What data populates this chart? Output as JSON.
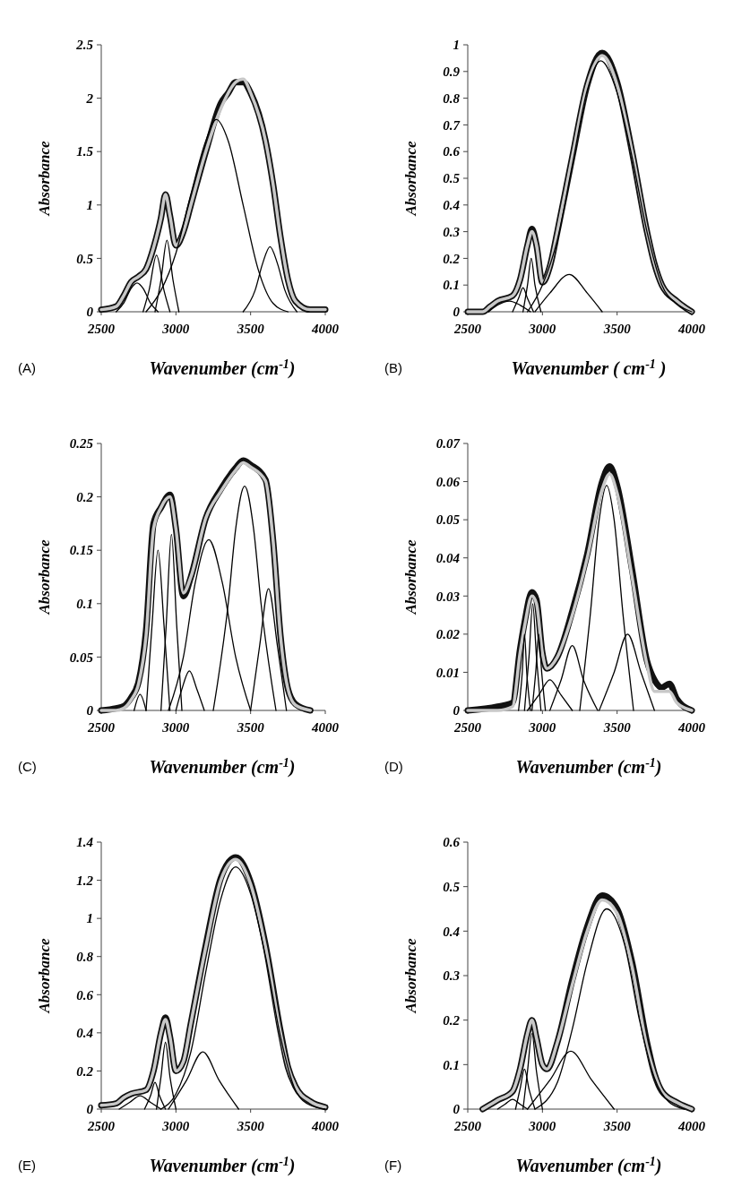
{
  "chart_data": [
    {
      "type": "line",
      "title": "(A)",
      "xlabel": "Wavenumber (cm$^{-1}$)",
      "ylabel": "Absorbance",
      "xlim": [
        2500,
        4000
      ],
      "xticks": [
        2500,
        3000,
        3500,
        4000
      ],
      "ylim": [
        0,
        2.5
      ],
      "yticks": [
        0,
        0.5,
        1,
        1.5,
        2,
        2.5
      ],
      "series": [
        {
          "color": "#111111",
          "x": [
            2500,
            2600,
            2650,
            2700,
            2750,
            2800,
            2850,
            2900,
            2930,
            2960,
            3000,
            3050,
            3100,
            3200,
            3300,
            3350,
            3400,
            3450,
            3500,
            3600,
            3650,
            3700,
            3750,
            3800,
            3900,
            4000
          ],
          "values": [
            0.02,
            0.05,
            0.15,
            0.28,
            0.33,
            0.4,
            0.6,
            0.88,
            1.1,
            0.9,
            0.62,
            0.75,
            1.0,
            1.5,
            1.95,
            2.05,
            2.15,
            2.15,
            2.05,
            1.6,
            1.2,
            0.7,
            0.3,
            0.1,
            0.02,
            0.02
          ]
        },
        {
          "color": "#c8c8c8",
          "x": [
            2500,
            2600,
            2650,
            2700,
            2750,
            2800,
            2850,
            2900,
            2930,
            2960,
            3000,
            3050,
            3100,
            3200,
            3300,
            3400,
            3450,
            3500,
            3600,
            3650,
            3700,
            3750,
            3800,
            3900,
            4000
          ],
          "values": [
            0.02,
            0.05,
            0.15,
            0.28,
            0.33,
            0.4,
            0.6,
            0.88,
            1.1,
            0.9,
            0.62,
            0.75,
            1.0,
            1.5,
            1.9,
            2.15,
            2.18,
            2.05,
            1.6,
            1.2,
            0.7,
            0.3,
            0.1,
            0.02,
            0.02
          ]
        },
        {
          "color": "#000000",
          "x": [
            2600,
            2650,
            2700,
            2740,
            2780,
            2830,
            2880
          ],
          "values": [
            0,
            0.08,
            0.22,
            0.27,
            0.22,
            0.08,
            0
          ]
        },
        {
          "color": "#000000",
          "x": [
            2780,
            2820,
            2870,
            2920,
            2960
          ],
          "values": [
            0,
            0.2,
            0.53,
            0.2,
            0
          ]
        },
        {
          "color": "#000000",
          "x": [
            2860,
            2900,
            2940,
            2980,
            3020
          ],
          "values": [
            0,
            0.3,
            0.67,
            0.3,
            0
          ]
        },
        {
          "color": "#000000",
          "x": [
            2800,
            2900,
            3000,
            3100,
            3200,
            3270,
            3350,
            3450,
            3550,
            3650,
            3750
          ],
          "values": [
            0,
            0.2,
            0.55,
            1.1,
            1.6,
            1.8,
            1.6,
            1.0,
            0.4,
            0.08,
            0
          ]
        },
        {
          "color": "#000000",
          "x": [
            3450,
            3530,
            3580,
            3630,
            3680,
            3730,
            3810
          ],
          "values": [
            0,
            0.2,
            0.45,
            0.61,
            0.45,
            0.2,
            0
          ]
        }
      ]
    },
    {
      "type": "line",
      "title": "(B)",
      "xlabel": "Wavenumber ( cm$^{-1}$ )",
      "ylabel": "Absorbance",
      "xlim": [
        2500,
        4000
      ],
      "xticks": [
        2500,
        3000,
        3500,
        4000
      ],
      "ylim": [
        0,
        1
      ],
      "yticks": [
        0,
        0.1,
        0.2,
        0.3,
        0.4,
        0.5,
        0.6,
        0.7,
        0.8,
        0.9,
        1
      ],
      "series": [
        {
          "color": "#111111",
          "x": [
            2500,
            2600,
            2650,
            2700,
            2800,
            2850,
            2900,
            2930,
            2960,
            3000,
            3050,
            3100,
            3200,
            3300,
            3400,
            3500,
            3600,
            3700,
            3750,
            3800,
            3900,
            4000
          ],
          "values": [
            0,
            0,
            0.02,
            0.04,
            0.06,
            0.12,
            0.25,
            0.31,
            0.25,
            0.11,
            0.17,
            0.3,
            0.58,
            0.85,
            0.97,
            0.86,
            0.6,
            0.3,
            0.18,
            0.1,
            0.04,
            0
          ]
        },
        {
          "color": "#c8c8c8",
          "x": [
            2500,
            2600,
            2650,
            2700,
            2800,
            2850,
            2900,
            2930,
            2960,
            3000,
            3050,
            3100,
            3200,
            3300,
            3400,
            3500,
            3600,
            3700,
            3750,
            3800,
            3900,
            4000
          ],
          "values": [
            0,
            0,
            0.02,
            0.04,
            0.06,
            0.12,
            0.25,
            0.3,
            0.25,
            0.11,
            0.17,
            0.3,
            0.58,
            0.85,
            0.96,
            0.85,
            0.6,
            0.3,
            0.18,
            0.1,
            0.04,
            0
          ]
        },
        {
          "color": "#000000",
          "x": [
            2640,
            2700,
            2780,
            2850,
            2920
          ],
          "values": [
            0,
            0.025,
            0.04,
            0.025,
            0
          ]
        },
        {
          "color": "#000000",
          "x": [
            2800,
            2840,
            2870,
            2900,
            2940
          ],
          "values": [
            0,
            0.05,
            0.09,
            0.05,
            0
          ]
        },
        {
          "color": "#000000",
          "x": [
            2870,
            2900,
            2925,
            2950,
            2990
          ],
          "values": [
            0,
            0.1,
            0.2,
            0.1,
            0
          ]
        },
        {
          "color": "#000000",
          "x": [
            2950,
            3050,
            3180,
            3300,
            3400
          ],
          "values": [
            0,
            0.07,
            0.14,
            0.07,
            0
          ]
        },
        {
          "color": "#000000",
          "x": [
            2900,
            3000,
            3100,
            3200,
            3300,
            3390,
            3500,
            3600,
            3700,
            3800,
            3900,
            4000
          ],
          "values": [
            0,
            0.1,
            0.27,
            0.55,
            0.83,
            0.94,
            0.82,
            0.58,
            0.3,
            0.1,
            0.03,
            0
          ]
        }
      ]
    },
    {
      "type": "line",
      "title": "(C)",
      "xlabel": "Wavenumber (cm$^{-1}$)",
      "ylabel": "Absorbance",
      "xlim": [
        2500,
        4000
      ],
      "xticks": [
        2500,
        3000,
        3500,
        4000
      ],
      "ylim": [
        0,
        0.25
      ],
      "yticks": [
        0,
        0.05,
        0.1,
        0.15,
        0.2,
        0.25
      ],
      "series": [
        {
          "color": "#111111",
          "x": [
            2500,
            2600,
            2650,
            2700,
            2750,
            2800,
            2850,
            2900,
            2960,
            3000,
            3050,
            3100,
            3200,
            3300,
            3400,
            3450,
            3500,
            3600,
            3650,
            3700,
            3750,
            3800,
            3900
          ],
          "values": [
            0,
            0.002,
            0.004,
            0.012,
            0.027,
            0.075,
            0.175,
            0.19,
            0.202,
            0.17,
            0.107,
            0.125,
            0.18,
            0.207,
            0.227,
            0.234,
            0.23,
            0.216,
            0.16,
            0.07,
            0.02,
            0.006,
            0
          ]
        },
        {
          "color": "#c8c8c8",
          "x": [
            2500,
            2600,
            2650,
            2700,
            2750,
            2800,
            2850,
            2900,
            2960,
            3000,
            3050,
            3100,
            3200,
            3300,
            3400,
            3450,
            3500,
            3600,
            3650,
            3700,
            3750,
            3800,
            3900
          ],
          "values": [
            0,
            0,
            0.002,
            0.01,
            0.025,
            0.07,
            0.17,
            0.19,
            0.2,
            0.17,
            0.11,
            0.125,
            0.18,
            0.205,
            0.225,
            0.232,
            0.228,
            0.215,
            0.16,
            0.07,
            0.02,
            0.005,
            0
          ]
        },
        {
          "color": "#000000",
          "x": [
            2720,
            2760,
            2800
          ],
          "values": [
            0,
            0.015,
            0
          ]
        },
        {
          "color": "#000000",
          "x": [
            2800,
            2840,
            2880,
            2920,
            2960
          ],
          "values": [
            0,
            0.08,
            0.15,
            0.08,
            0
          ]
        },
        {
          "color": "#000000",
          "x": [
            2900,
            2935,
            2970,
            3005,
            3040
          ],
          "values": [
            0,
            0.08,
            0.165,
            0.08,
            0
          ]
        },
        {
          "color": "#000000",
          "x": [
            3000,
            3040,
            3090,
            3140,
            3190
          ],
          "values": [
            0,
            0.02,
            0.037,
            0.02,
            0
          ]
        },
        {
          "color": "#000000",
          "x": [
            2950,
            3050,
            3130,
            3220,
            3310,
            3400,
            3500
          ],
          "values": [
            0,
            0.05,
            0.12,
            0.16,
            0.12,
            0.05,
            0
          ]
        },
        {
          "color": "#000000",
          "x": [
            3250,
            3350,
            3400,
            3460,
            3520,
            3570,
            3670
          ],
          "values": [
            0,
            0.1,
            0.17,
            0.21,
            0.17,
            0.1,
            0
          ]
        },
        {
          "color": "#000000",
          "x": [
            3500,
            3560,
            3620,
            3680,
            3740
          ],
          "values": [
            0,
            0.06,
            0.114,
            0.06,
            0
          ]
        }
      ]
    },
    {
      "type": "line",
      "title": "(D)",
      "xlabel": "Wavenumber (cm$^{-1}$)",
      "ylabel": "Absorbance",
      "xlim": [
        2500,
        4000
      ],
      "xticks": [
        2500,
        3000,
        3500,
        4000
      ],
      "ylim": [
        0,
        0.07
      ],
      "yticks": [
        0,
        0.01,
        0.02,
        0.03,
        0.04,
        0.05,
        0.06,
        0.07
      ],
      "series": [
        {
          "color": "#111111",
          "x": [
            2500,
            2700,
            2800,
            2850,
            2880,
            2930,
            2960,
            3000,
            3030,
            3100,
            3200,
            3300,
            3400,
            3450,
            3500,
            3600,
            3700,
            3750,
            3800,
            3850,
            3900,
            4000
          ],
          "values": [
            0,
            0.001,
            0.002,
            0.016,
            0.023,
            0.031,
            0.029,
            0.015,
            0.011,
            0.014,
            0.026,
            0.041,
            0.06,
            0.064,
            0.059,
            0.037,
            0.013,
            0.008,
            0.006,
            0.007,
            0.003,
            0
          ]
        },
        {
          "color": "#c8c8c8",
          "x": [
            2500,
            2700,
            2800,
            2850,
            2880,
            2930,
            2960,
            3000,
            3030,
            3100,
            3200,
            3300,
            3400,
            3450,
            3500,
            3600,
            3700,
            3750,
            3800,
            3850,
            3900,
            4000
          ],
          "values": [
            0,
            0,
            0.001,
            0.015,
            0.022,
            0.03,
            0.028,
            0.015,
            0.011,
            0.014,
            0.025,
            0.04,
            0.058,
            0.062,
            0.057,
            0.035,
            0.012,
            0.005,
            0.005,
            0.005,
            0.002,
            0
          ]
        },
        {
          "color": "#000000",
          "x": [
            2840,
            2865,
            2880,
            2895,
            2920
          ],
          "values": [
            0,
            0.01,
            0.02,
            0.01,
            0
          ]
        },
        {
          "color": "#000000",
          "x": [
            2880,
            2910,
            2935,
            2960,
            2990
          ],
          "values": [
            0,
            0.014,
            0.028,
            0.014,
            0
          ]
        },
        {
          "color": "#000000",
          "x": [
            2930,
            2955,
            2975,
            2995,
            3020
          ],
          "values": [
            0,
            0.01,
            0.02,
            0.01,
            0
          ]
        },
        {
          "color": "#000000",
          "x": [
            2900,
            2975,
            3050,
            3125,
            3200
          ],
          "values": [
            0,
            0.004,
            0.008,
            0.004,
            0
          ]
        },
        {
          "color": "#000000",
          "x": [
            3050,
            3125,
            3200,
            3275,
            3370
          ],
          "values": [
            0,
            0.008,
            0.017,
            0.008,
            0
          ]
        },
        {
          "color": "#000000",
          "x": [
            3250,
            3320,
            3380,
            3430,
            3480,
            3540,
            3610
          ],
          "values": [
            0,
            0.025,
            0.05,
            0.059,
            0.05,
            0.025,
            0
          ]
        },
        {
          "color": "#000000",
          "x": [
            3380,
            3480,
            3570,
            3660,
            3750
          ],
          "values": [
            0,
            0.01,
            0.02,
            0.01,
            0
          ]
        }
      ]
    },
    {
      "type": "line",
      "title": "(E)",
      "xlabel": "Wavenumber (cm$^{-1}$)",
      "ylabel": "Absorbance",
      "xlim": [
        2500,
        4000
      ],
      "xticks": [
        2500,
        3000,
        3500,
        4000
      ],
      "ylim": [
        0,
        1.4
      ],
      "yticks": [
        0,
        0.2,
        0.4,
        0.6,
        0.8,
        1,
        1.2,
        1.4
      ],
      "series": [
        {
          "color": "#111111",
          "x": [
            2500,
            2600,
            2650,
            2700,
            2800,
            2850,
            2900,
            2930,
            2960,
            3000,
            3050,
            3100,
            3200,
            3300,
            3400,
            3500,
            3600,
            3700,
            3750,
            3800,
            3900,
            4000
          ],
          "values": [
            0.02,
            0.03,
            0.06,
            0.08,
            0.1,
            0.2,
            0.4,
            0.48,
            0.38,
            0.2,
            0.25,
            0.45,
            0.86,
            1.21,
            1.32,
            1.19,
            0.86,
            0.41,
            0.22,
            0.12,
            0.04,
            0.01
          ]
        },
        {
          "color": "#c8c8c8",
          "x": [
            2500,
            2600,
            2650,
            2700,
            2800,
            2850,
            2900,
            2930,
            2960,
            3000,
            3050,
            3100,
            3200,
            3300,
            3400,
            3500,
            3600,
            3700,
            3750,
            3800,
            3900,
            4000
          ],
          "values": [
            0.02,
            0.03,
            0.06,
            0.08,
            0.1,
            0.2,
            0.4,
            0.47,
            0.38,
            0.2,
            0.25,
            0.45,
            0.85,
            1.2,
            1.31,
            1.18,
            0.85,
            0.4,
            0.22,
            0.12,
            0.04,
            0.01
          ]
        },
        {
          "color": "#000000",
          "x": [
            2620,
            2690,
            2760,
            2830,
            2900
          ],
          "values": [
            0,
            0.035,
            0.07,
            0.035,
            0
          ]
        },
        {
          "color": "#000000",
          "x": [
            2790,
            2830,
            2860,
            2890,
            2930
          ],
          "values": [
            0,
            0.07,
            0.14,
            0.07,
            0
          ]
        },
        {
          "color": "#000000",
          "x": [
            2870,
            2900,
            2930,
            2960,
            3000
          ],
          "values": [
            0,
            0.17,
            0.35,
            0.17,
            0
          ]
        },
        {
          "color": "#000000",
          "x": [
            2950,
            3070,
            3180,
            3290,
            3420
          ],
          "values": [
            0,
            0.15,
            0.3,
            0.15,
            0
          ]
        },
        {
          "color": "#000000",
          "x": [
            2900,
            3000,
            3100,
            3200,
            3300,
            3400,
            3500,
            3600,
            3700,
            3800,
            3900,
            4000
          ],
          "values": [
            0,
            0.08,
            0.3,
            0.72,
            1.1,
            1.27,
            1.13,
            0.8,
            0.38,
            0.1,
            0.02,
            0
          ]
        }
      ]
    },
    {
      "type": "line",
      "title": "(F)",
      "xlabel": "Wavenumber (cm$^{-1}$)",
      "ylabel": "Absorbance",
      "xlim": [
        2500,
        4000
      ],
      "xticks": [
        2500,
        3000,
        3500,
        4000
      ],
      "ylim": [
        0,
        0.6
      ],
      "yticks": [
        0,
        0.1,
        0.2,
        0.3,
        0.4,
        0.5,
        0.6
      ],
      "series": [
        {
          "color": "#111111",
          "x": [
            2600,
            2650,
            2700,
            2800,
            2850,
            2900,
            2930,
            2960,
            3000,
            3030,
            3100,
            3200,
            3300,
            3400,
            3500,
            3600,
            3700,
            3750,
            3800,
            3900,
            4000
          ],
          "values": [
            0,
            0.01,
            0.02,
            0.04,
            0.09,
            0.17,
            0.2,
            0.16,
            0.1,
            0.09,
            0.15,
            0.29,
            0.41,
            0.48,
            0.45,
            0.33,
            0.15,
            0.08,
            0.04,
            0.015,
            0
          ]
        },
        {
          "color": "#c8c8c8",
          "x": [
            2600,
            2650,
            2700,
            2800,
            2850,
            2900,
            2930,
            2960,
            3000,
            3030,
            3100,
            3200,
            3300,
            3400,
            3500,
            3600,
            3700,
            3750,
            3800,
            3900,
            4000
          ],
          "values": [
            0,
            0.01,
            0.02,
            0.04,
            0.09,
            0.17,
            0.2,
            0.16,
            0.1,
            0.09,
            0.15,
            0.28,
            0.4,
            0.47,
            0.44,
            0.32,
            0.14,
            0.08,
            0.04,
            0.015,
            0
          ]
        },
        {
          "color": "#000000",
          "x": [
            2700,
            2750,
            2800,
            2850,
            2900
          ],
          "values": [
            0,
            0.011,
            0.022,
            0.011,
            0
          ]
        },
        {
          "color": "#000000",
          "x": [
            2820,
            2850,
            2880,
            2910,
            2950
          ],
          "values": [
            0,
            0.045,
            0.09,
            0.045,
            0
          ]
        },
        {
          "color": "#000000",
          "x": [
            2870,
            2900,
            2930,
            2960,
            3000
          ],
          "values": [
            0,
            0.085,
            0.17,
            0.085,
            0
          ]
        },
        {
          "color": "#000000",
          "x": [
            2900,
            3050,
            3190,
            3330,
            3480
          ],
          "values": [
            0,
            0.065,
            0.13,
            0.065,
            0
          ]
        },
        {
          "color": "#000000",
          "x": [
            2950,
            3100,
            3200,
            3300,
            3430,
            3550,
            3650,
            3750,
            3850,
            3950
          ],
          "values": [
            0,
            0.06,
            0.18,
            0.33,
            0.45,
            0.37,
            0.2,
            0.07,
            0.015,
            0
          ]
        }
      ]
    }
  ]
}
